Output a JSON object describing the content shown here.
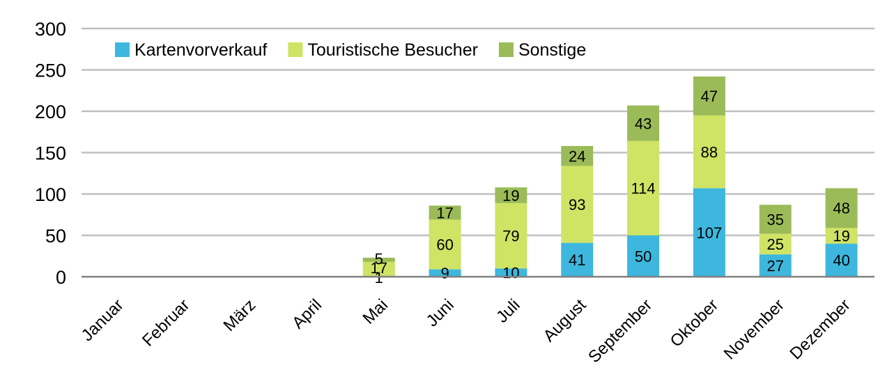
{
  "chart_data": {
    "type": "bar",
    "stacked": true,
    "categories": [
      "Januar",
      "Februar",
      "März",
      "April",
      "Mai",
      "Juni",
      "Juli",
      "August",
      "September",
      "Oktober",
      "November",
      "Dezember"
    ],
    "series": [
      {
        "name": "Kartenvorverkauf",
        "color": "#3db7de",
        "values": [
          0,
          0,
          0,
          0,
          1,
          9,
          10,
          41,
          50,
          107,
          27,
          40
        ]
      },
      {
        "name": "Touristische Besucher",
        "color": "#cfe365",
        "values": [
          0,
          0,
          0,
          0,
          17,
          60,
          79,
          93,
          114,
          88,
          25,
          19
        ]
      },
      {
        "name": "Sonstige",
        "color": "#9bbb59",
        "values": [
          0,
          0,
          0,
          0,
          5,
          17,
          19,
          24,
          43,
          47,
          35,
          48
        ]
      }
    ],
    "yticks": [
      0,
      50,
      100,
      150,
      200,
      250,
      300
    ],
    "ylim": [
      0,
      300
    ],
    "grid": true,
    "legend_position": "top-left",
    "title": "",
    "xlabel": "",
    "ylabel": ""
  }
}
